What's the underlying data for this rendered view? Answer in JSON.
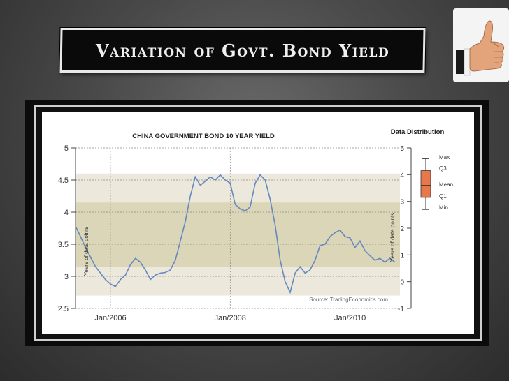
{
  "slide": {
    "title": "Variation of Govt.  Bond Yield",
    "thumb_icon": "thumbs-up-icon"
  },
  "chart_data": {
    "type": "line",
    "title": "CHINA GOVERNMENT BOND 10 YEAR YIELD",
    "xlabel": "",
    "ylabel": "",
    "x_ticks": [
      "Jan/2006",
      "Jan/2008",
      "Jan/2010"
    ],
    "y_ticks": [
      "2.5",
      "3",
      "3.5",
      "4",
      "4.5",
      "5"
    ],
    "ylim": [
      2.5,
      5
    ],
    "xlim": [
      "2005-06",
      "2010-11"
    ],
    "grid": true,
    "source": "Source: TradingEconomics.com",
    "left_vertical_label": "Years of data points",
    "series": [
      {
        "name": "",
        "color": "#6688c0",
        "points": [
          [
            "2005-06",
            3.78
          ],
          [
            "2005-07",
            3.62
          ],
          [
            "2005-08",
            3.45
          ],
          [
            "2005-09",
            3.3
          ],
          [
            "2005-10",
            3.15
          ],
          [
            "2005-11",
            3.05
          ],
          [
            "2005-12",
            2.95
          ],
          [
            "2006-01",
            2.88
          ],
          [
            "2006-02",
            2.84
          ],
          [
            "2006-03",
            2.95
          ],
          [
            "2006-04",
            3.02
          ],
          [
            "2006-05",
            3.18
          ],
          [
            "2006-06",
            3.28
          ],
          [
            "2006-07",
            3.22
          ],
          [
            "2006-08",
            3.1
          ],
          [
            "2006-09",
            2.95
          ],
          [
            "2006-10",
            3.02
          ],
          [
            "2006-11",
            3.05
          ],
          [
            "2006-12",
            3.06
          ],
          [
            "2007-01",
            3.1
          ],
          [
            "2007-02",
            3.25
          ],
          [
            "2007-03",
            3.55
          ],
          [
            "2007-04",
            3.85
          ],
          [
            "2007-05",
            4.25
          ],
          [
            "2007-06",
            4.55
          ],
          [
            "2007-07",
            4.42
          ],
          [
            "2007-08",
            4.48
          ],
          [
            "2007-09",
            4.55
          ],
          [
            "2007-10",
            4.5
          ],
          [
            "2007-11",
            4.58
          ],
          [
            "2007-12",
            4.5
          ],
          [
            "2008-01",
            4.45
          ],
          [
            "2008-02",
            4.12
          ],
          [
            "2008-03",
            4.05
          ],
          [
            "2008-04",
            4.02
          ],
          [
            "2008-05",
            4.08
          ],
          [
            "2008-06",
            4.45
          ],
          [
            "2008-07",
            4.58
          ],
          [
            "2008-08",
            4.5
          ],
          [
            "2008-09",
            4.2
          ],
          [
            "2008-10",
            3.8
          ],
          [
            "2008-11",
            3.25
          ],
          [
            "2008-12",
            2.92
          ],
          [
            "2009-01",
            2.75
          ],
          [
            "2009-02",
            3.05
          ],
          [
            "2009-03",
            3.15
          ],
          [
            "2009-04",
            3.05
          ],
          [
            "2009-05",
            3.1
          ],
          [
            "2009-06",
            3.25
          ],
          [
            "2009-07",
            3.48
          ],
          [
            "2009-08",
            3.5
          ],
          [
            "2009-09",
            3.62
          ],
          [
            "2009-10",
            3.68
          ],
          [
            "2009-11",
            3.72
          ],
          [
            "2009-12",
            3.62
          ],
          [
            "2010-01",
            3.6
          ],
          [
            "2010-02",
            3.45
          ],
          [
            "2010-03",
            3.55
          ],
          [
            "2010-04",
            3.4
          ],
          [
            "2010-05",
            3.32
          ],
          [
            "2010-06",
            3.25
          ],
          [
            "2010-07",
            3.28
          ],
          [
            "2010-08",
            3.22
          ],
          [
            "2010-09",
            3.28
          ],
          [
            "2010-10",
            3.22
          ]
        ]
      }
    ],
    "bands": [
      {
        "from": 2.7,
        "to": 4.6,
        "color": "#ece9dc"
      },
      {
        "from": 3.15,
        "to": 4.15,
        "color": "#dcd6b8"
      }
    ],
    "distribution": {
      "title": "Data Distribution",
      "y_ticks": [
        "-1",
        "0",
        "1",
        "2",
        "3",
        "4",
        "5"
      ],
      "ylim": [
        -1,
        5
      ],
      "vertical_label": "Years of data points",
      "labels": [
        "Max",
        "Q3",
        "Mean",
        "Q1",
        "Min"
      ],
      "max": 4.6,
      "q3": 4.15,
      "mean": 3.6,
      "q1": 3.15,
      "min": 2.7,
      "box_color": "#e8784a"
    }
  }
}
